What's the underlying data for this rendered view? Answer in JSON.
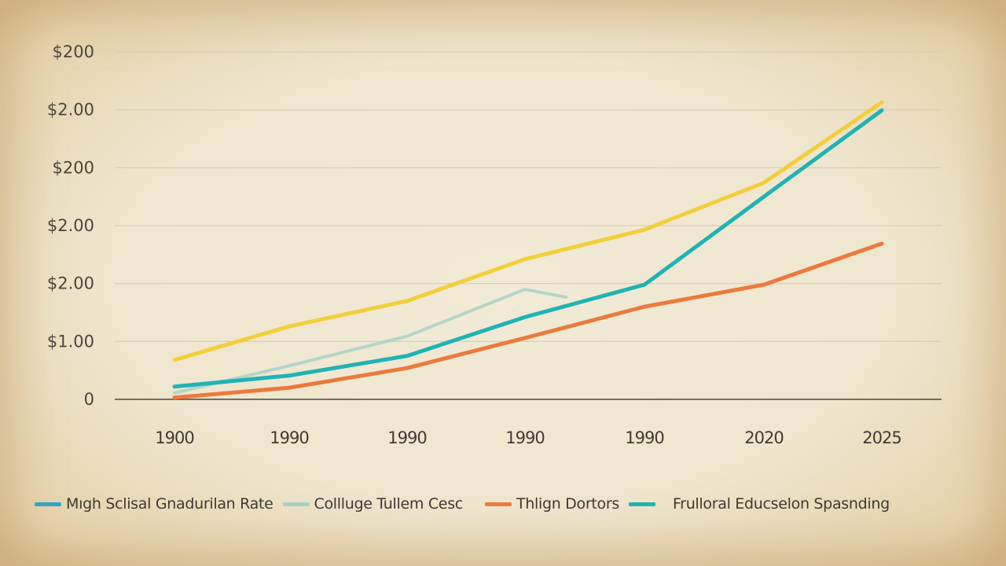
{
  "chart_data": {
    "type": "line",
    "title": "",
    "xlabel": "",
    "ylabel": "",
    "categories": [
      "1900",
      "1990",
      "1990",
      "1990",
      "1990",
      "2020",
      "2025"
    ],
    "y_tick_labels": [
      "0",
      "$100",
      "$200",
      "$200",
      "$200",
      "$200",
      "$200"
    ],
    "y_tick_labels_as_rendered": [
      "0",
      "$1.00",
      "$2.00",
      "$2.00",
      "$2.00",
      "$2.00",
      "$2.00"
    ],
    "ylim": [
      0,
      600
    ],
    "grid": true,
    "legend_position": "bottom",
    "series": [
      {
        "name": "High School Graduation Rate",
        "color": "#2aa6c9",
        "values": [
          22,
          41,
          75,
          142,
          198,
          350,
          499
        ]
      },
      {
        "name": "College Tuition Cost",
        "color": "#a9d1c4",
        "values": [
          11,
          58,
          109,
          190,
          null,
          null,
          null
        ]
      },
      {
        "name": "Tuition Doctors",
        "color": "#ec7a3c",
        "values": [
          3,
          20,
          54,
          106,
          160,
          198,
          269
        ]
      },
      {
        "name": "Federal Education Spending",
        "color": "#1fb3b5",
        "values": [
          22,
          41,
          75,
          142,
          198,
          350,
          499
        ]
      },
      {
        "name": "(unlabeled yellow series)",
        "color": "#f2cf3a",
        "values": [
          68,
          126,
          170,
          242,
          293,
          374,
          513
        ]
      }
    ]
  },
  "axis": {
    "y_labels": [
      "$200",
      "$1.00",
      "$2.00",
      "$2.00",
      "$2.00",
      "$2.00",
      "0"
    ],
    "y_labels_display": [
      "$200",
      "$2.00",
      "$200",
      "$2.00",
      "$2.00",
      "$1.00",
      "0"
    ],
    "x_labels": [
      "1900",
      "1990",
      "1990",
      "1990",
      "1990",
      "2020",
      "2025"
    ]
  },
  "legend": [
    {
      "label": "High School Graduation Rate",
      "label_as_rendered": "Mıgh Sclisal Gnadurilan Rate",
      "color": "#2aa6c9"
    },
    {
      "label": "College Tuition Cost",
      "label_as_rendered": "Collluge Tullem Cesc",
      "color": "#a9d1c4"
    },
    {
      "label": "Tuition Doctors",
      "label_as_rendered": "Thlign Dortors",
      "color": "#ec7a3c"
    },
    {
      "label": "Federal Education Spending",
      "label_as_rendered": "Frulloral Educselon Spasnding",
      "color": "#1fb3b5"
    }
  ],
  "colors": {
    "background": "#efe6cf",
    "gridline": "#d8d0bd",
    "axis": "#4a463d",
    "yellow": "#f2cf3a",
    "teal": "#1fb3b5",
    "light_teal": "#a9d1c4",
    "orange": "#ec7a3c",
    "blue": "#2aa6c9"
  }
}
